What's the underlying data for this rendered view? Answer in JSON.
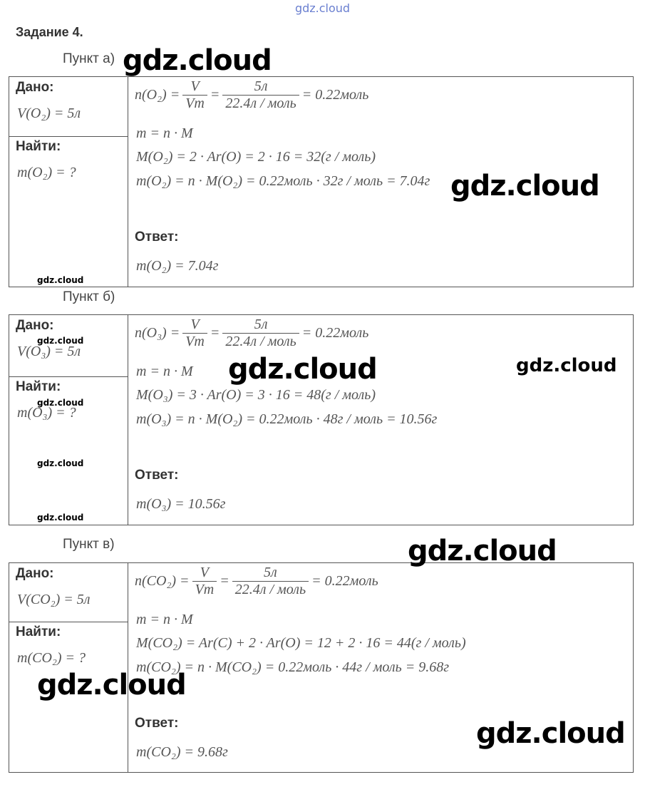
{
  "watermark": "gdz.cloud",
  "task_title": "Задание 4.",
  "labels": {
    "given": "Дано:",
    "find": "Найти:",
    "answer": "Ответ:"
  },
  "blocks": [
    {
      "part": "Пункт а)",
      "given": "V(O₂) = 5л",
      "find": "m(O₂) = ?",
      "n_lhs": "n(O₂) =",
      "n_num": "V",
      "n_den": "Vm",
      "n_num2": "5л",
      "n_den2": "22.4л / моль",
      "n_res": "= 0.22моль",
      "line2": "m = n · M",
      "line3": "M(O₂) = 2 · Ar(O) = 2 · 16 = 32(г / моль)",
      "line4": "m(O₂) = n · M(O₂) = 0.22моль · 32г / моль = 7.04г",
      "answer": "m(O₂) = 7.04г"
    },
    {
      "part": "Пункт б)",
      "given": "V(O₃) = 5л",
      "find": "m(O₃) = ?",
      "n_lhs": "n(O₃) =",
      "n_num": "V",
      "n_den": "Vm",
      "n_num2": "5л",
      "n_den2": "22.4л / моль",
      "n_res": "= 0.22моль",
      "line2": "m = n · M",
      "line3": "M(O₃) = 3 · Ar(O) = 3 · 16 = 48(г / моль)",
      "line4": "m(O₃) = n · M(O₂) = 0.22моль · 48г / моль = 10.56г",
      "answer": "m(O₃) = 10.56г"
    },
    {
      "part": "Пункт в)",
      "given": "V(CO₂) = 5л",
      "find": "m(CO₂) = ?",
      "n_lhs": "n(CO₂) =",
      "n_num": "V",
      "n_den": "Vm",
      "n_num2": "5л",
      "n_den2": "22.4л / моль",
      "n_res": "= 0.22моль",
      "line2": "m = n · M",
      "line3": "M(CO₂) = Ar(C) + 2 · Ar(O) = 12 + 2 · 16 = 44(г / моль)",
      "line4": "m(CO₂) = n · M(CO₂) = 0.22моль · 44г / моль = 9.68г",
      "answer": "m(CO₂) = 9.68г"
    }
  ]
}
